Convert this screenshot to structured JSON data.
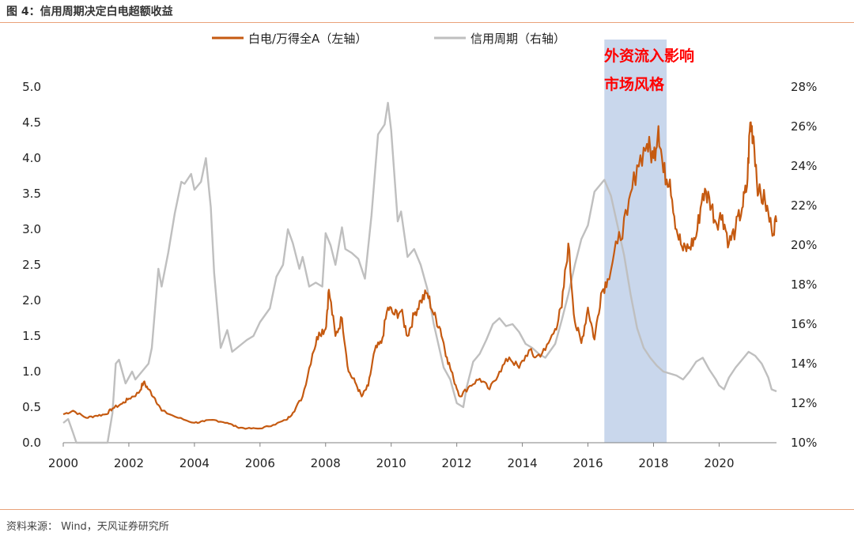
{
  "header": {
    "title": "图 4：信用周期决定白电超额收益"
  },
  "footer": {
    "source": "资料来源：  Wind，天风证券研究所"
  },
  "colors": {
    "primary": "#C55A11",
    "secondary": "#BFBFBF",
    "shade": "#C9D7EC",
    "annotation": "#FF0000",
    "rule": "#E9A27A"
  },
  "chart_data": {
    "type": "line",
    "legend": {
      "placement": "top-center"
    },
    "grid": false,
    "x_axis": {
      "ticks": [
        "2000",
        "2002",
        "2004",
        "2006",
        "2008",
        "2010",
        "2012",
        "2014",
        "2016",
        "2018",
        "2020"
      ],
      "range": [
        2000,
        2021.75
      ]
    },
    "y_left": {
      "ticks": [
        "0.0",
        "0.5",
        "1.0",
        "1.5",
        "2.0",
        "2.5",
        "3.0",
        "3.5",
        "4.0",
        "4.5",
        "5.0"
      ],
      "range": [
        0,
        5
      ]
    },
    "y_right": {
      "ticks": [
        "10%",
        "12%",
        "14%",
        "16%",
        "18%",
        "20%",
        "22%",
        "24%",
        "26%",
        "28%"
      ],
      "range": [
        10,
        28
      ]
    },
    "shaded_region": {
      "x_start": 2016.5,
      "x_end": 2018.4,
      "label_line1": "外资流入影响",
      "label_line2": "市场风格"
    },
    "series": [
      {
        "name": "白电/万得全A（左轴）",
        "axis": "left",
        "points": [
          [
            2000.0,
            0.4
          ],
          [
            2000.3,
            0.45
          ],
          [
            2000.7,
            0.35
          ],
          [
            2001.0,
            0.38
          ],
          [
            2001.3,
            0.4
          ],
          [
            2001.5,
            0.48
          ],
          [
            2001.8,
            0.55
          ],
          [
            2002.0,
            0.62
          ],
          [
            2002.3,
            0.7
          ],
          [
            2002.45,
            0.85
          ],
          [
            2002.6,
            0.75
          ],
          [
            2002.8,
            0.62
          ],
          [
            2003.0,
            0.45
          ],
          [
            2003.5,
            0.35
          ],
          [
            2004.0,
            0.28
          ],
          [
            2004.3,
            0.3
          ],
          [
            2004.6,
            0.32
          ],
          [
            2005.0,
            0.28
          ],
          [
            2005.3,
            0.22
          ],
          [
            2005.6,
            0.2
          ],
          [
            2006.0,
            0.2
          ],
          [
            2006.4,
            0.25
          ],
          [
            2006.8,
            0.32
          ],
          [
            2007.0,
            0.42
          ],
          [
            2007.3,
            0.65
          ],
          [
            2007.6,
            1.25
          ],
          [
            2007.8,
            1.55
          ],
          [
            2008.0,
            1.6
          ],
          [
            2008.1,
            2.15
          ],
          [
            2008.3,
            1.5
          ],
          [
            2008.5,
            1.75
          ],
          [
            2008.7,
            1.0
          ],
          [
            2008.9,
            0.85
          ],
          [
            2009.1,
            0.65
          ],
          [
            2009.3,
            0.8
          ],
          [
            2009.5,
            1.3
          ],
          [
            2009.7,
            1.4
          ],
          [
            2009.9,
            1.9
          ],
          [
            2010.1,
            1.8
          ],
          [
            2010.3,
            1.85
          ],
          [
            2010.5,
            1.5
          ],
          [
            2010.7,
            1.8
          ],
          [
            2010.9,
            2.0
          ],
          [
            2011.1,
            2.1
          ],
          [
            2011.3,
            1.8
          ],
          [
            2011.5,
            1.6
          ],
          [
            2011.7,
            1.2
          ],
          [
            2011.9,
            0.9
          ],
          [
            2012.1,
            0.65
          ],
          [
            2012.4,
            0.8
          ],
          [
            2012.7,
            0.9
          ],
          [
            2013.0,
            0.75
          ],
          [
            2013.3,
            1.0
          ],
          [
            2013.6,
            1.2
          ],
          [
            2013.9,
            1.05
          ],
          [
            2014.2,
            1.3
          ],
          [
            2014.4,
            1.2
          ],
          [
            2014.7,
            1.3
          ],
          [
            2015.0,
            1.6
          ],
          [
            2015.2,
            1.9
          ],
          [
            2015.4,
            2.8
          ],
          [
            2015.6,
            1.7
          ],
          [
            2015.8,
            1.4
          ],
          [
            2016.0,
            1.9
          ],
          [
            2016.2,
            1.45
          ],
          [
            2016.4,
            2.1
          ],
          [
            2016.6,
            2.3
          ],
          [
            2016.9,
            2.8
          ],
          [
            2017.2,
            3.2
          ],
          [
            2017.5,
            3.9
          ],
          [
            2017.8,
            4.2
          ],
          [
            2018.0,
            4.0
          ],
          [
            2018.15,
            4.45
          ],
          [
            2018.3,
            3.8
          ],
          [
            2018.5,
            3.7
          ],
          [
            2018.7,
            3.0
          ],
          [
            2018.9,
            2.7
          ],
          [
            2019.1,
            2.75
          ],
          [
            2019.3,
            2.9
          ],
          [
            2019.5,
            3.5
          ],
          [
            2019.7,
            3.45
          ],
          [
            2019.9,
            3.1
          ],
          [
            2020.1,
            3.2
          ],
          [
            2020.3,
            2.8
          ],
          [
            2020.5,
            3.0
          ],
          [
            2020.7,
            3.3
          ],
          [
            2020.85,
            3.6
          ],
          [
            2020.95,
            4.5
          ],
          [
            2021.05,
            4.3
          ],
          [
            2021.2,
            3.5
          ],
          [
            2021.4,
            3.4
          ],
          [
            2021.6,
            3.0
          ],
          [
            2021.75,
            3.1
          ]
        ]
      },
      {
        "name": "信用周期（右轴）",
        "axis": "right",
        "points": [
          [
            2000.0,
            11.0
          ],
          [
            2000.15,
            11.2
          ],
          [
            2000.3,
            10.5
          ],
          [
            2000.4,
            10.0
          ],
          [
            2000.45,
            9.5
          ],
          [
            2001.3,
            9.5
          ],
          [
            2001.35,
            10.0
          ],
          [
            2001.5,
            11.5
          ],
          [
            2001.6,
            14.0
          ],
          [
            2001.7,
            14.2
          ],
          [
            2001.9,
            13.0
          ],
          [
            2002.1,
            13.6
          ],
          [
            2002.2,
            13.2
          ],
          [
            2002.4,
            13.6
          ],
          [
            2002.6,
            14.0
          ],
          [
            2002.7,
            14.8
          ],
          [
            2002.9,
            18.8
          ],
          [
            2003.0,
            17.9
          ],
          [
            2003.2,
            19.6
          ],
          [
            2003.4,
            21.6
          ],
          [
            2003.6,
            23.2
          ],
          [
            2003.7,
            23.1
          ],
          [
            2003.9,
            23.6
          ],
          [
            2004.0,
            22.8
          ],
          [
            2004.2,
            23.2
          ],
          [
            2004.35,
            24.4
          ],
          [
            2004.5,
            21.9
          ],
          [
            2004.6,
            18.6
          ],
          [
            2004.8,
            14.8
          ],
          [
            2005.0,
            15.7
          ],
          [
            2005.15,
            14.6
          ],
          [
            2005.3,
            14.8
          ],
          [
            2005.6,
            15.2
          ],
          [
            2005.8,
            15.4
          ],
          [
            2006.0,
            16.1
          ],
          [
            2006.3,
            16.8
          ],
          [
            2006.5,
            18.4
          ],
          [
            2006.7,
            19.0
          ],
          [
            2006.85,
            20.8
          ],
          [
            2007.0,
            20.1
          ],
          [
            2007.2,
            18.8
          ],
          [
            2007.3,
            19.4
          ],
          [
            2007.5,
            17.9
          ],
          [
            2007.7,
            18.1
          ],
          [
            2007.9,
            17.9
          ],
          [
            2008.0,
            20.6
          ],
          [
            2008.15,
            20.0
          ],
          [
            2008.3,
            19.0
          ],
          [
            2008.5,
            20.9
          ],
          [
            2008.6,
            19.8
          ],
          [
            2008.8,
            19.6
          ],
          [
            2009.0,
            19.3
          ],
          [
            2009.2,
            18.3
          ],
          [
            2009.4,
            21.5
          ],
          [
            2009.6,
            25.6
          ],
          [
            2009.8,
            26.1
          ],
          [
            2009.9,
            27.2
          ],
          [
            2010.0,
            25.8
          ],
          [
            2010.2,
            21.2
          ],
          [
            2010.3,
            21.7
          ],
          [
            2010.5,
            19.4
          ],
          [
            2010.7,
            19.8
          ],
          [
            2010.9,
            19.0
          ],
          [
            2011.1,
            17.8
          ],
          [
            2011.3,
            16.0
          ],
          [
            2011.6,
            13.8
          ],
          [
            2011.8,
            13.2
          ],
          [
            2012.0,
            12.0
          ],
          [
            2012.2,
            11.8
          ],
          [
            2012.3,
            12.8
          ],
          [
            2012.5,
            14.1
          ],
          [
            2012.7,
            14.5
          ],
          [
            2012.9,
            15.2
          ],
          [
            2013.1,
            16.0
          ],
          [
            2013.3,
            16.3
          ],
          [
            2013.5,
            15.9
          ],
          [
            2013.7,
            16.0
          ],
          [
            2013.9,
            15.6
          ],
          [
            2014.1,
            15.0
          ],
          [
            2014.3,
            14.8
          ],
          [
            2014.5,
            14.5
          ],
          [
            2014.7,
            14.3
          ],
          [
            2015.0,
            15.0
          ],
          [
            2015.2,
            16.2
          ],
          [
            2015.4,
            17.5
          ],
          [
            2015.6,
            19.0
          ],
          [
            2015.8,
            20.3
          ],
          [
            2016.0,
            21.0
          ],
          [
            2016.2,
            22.7
          ],
          [
            2016.5,
            23.3
          ],
          [
            2016.7,
            22.5
          ],
          [
            2016.9,
            21.0
          ],
          [
            2017.1,
            19.5
          ],
          [
            2017.3,
            17.5
          ],
          [
            2017.5,
            15.8
          ],
          [
            2017.7,
            14.8
          ],
          [
            2017.9,
            14.3
          ],
          [
            2018.1,
            13.9
          ],
          [
            2018.3,
            13.6
          ],
          [
            2018.5,
            13.5
          ],
          [
            2018.7,
            13.4
          ],
          [
            2018.9,
            13.2
          ],
          [
            2019.1,
            13.6
          ],
          [
            2019.3,
            14.1
          ],
          [
            2019.5,
            14.3
          ],
          [
            2019.7,
            13.7
          ],
          [
            2019.9,
            13.2
          ],
          [
            2020.0,
            12.9
          ],
          [
            2020.15,
            12.7
          ],
          [
            2020.3,
            13.3
          ],
          [
            2020.5,
            13.8
          ],
          [
            2020.7,
            14.2
          ],
          [
            2020.9,
            14.6
          ],
          [
            2021.1,
            14.4
          ],
          [
            2021.3,
            14.0
          ],
          [
            2021.5,
            13.3
          ],
          [
            2021.6,
            12.7
          ],
          [
            2021.75,
            12.6
          ]
        ]
      }
    ]
  }
}
